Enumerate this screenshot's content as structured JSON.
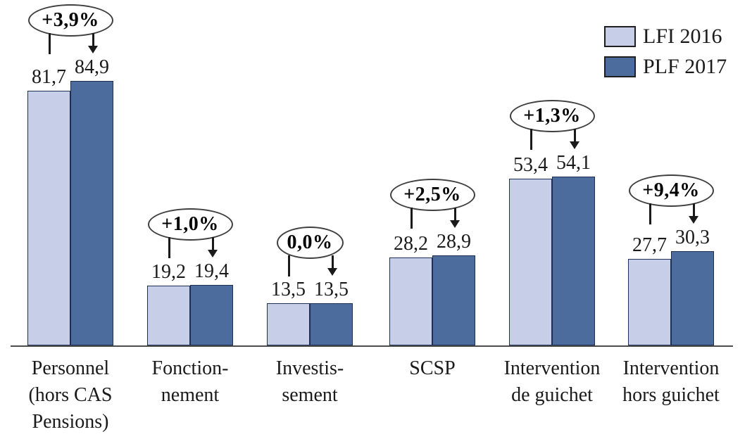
{
  "chart_data": {
    "type": "bar",
    "title": "",
    "xlabel": "",
    "ylabel": "",
    "ylim": [
      0,
      111
    ],
    "grid": false,
    "axis_visible": {
      "x": true,
      "y": false
    },
    "legend_position": "top-right",
    "decimal_separator": ",",
    "categories": [
      "Personnel\n(hors CAS\nPensions)",
      "Fonction-\nnement",
      "Investis-\nsement",
      "SCSP",
      "Intervention\nde guichet",
      "Intervention\nhors guichet"
    ],
    "series": [
      {
        "name": "LFI 2016",
        "values": [
          81.7,
          19.2,
          13.5,
          28.2,
          53.4,
          27.7
        ],
        "display": [
          "81,7",
          "19,2",
          "13,5",
          "28,2",
          "53,4",
          "27,7"
        ]
      },
      {
        "name": "PLF 2017",
        "values": [
          84.9,
          19.4,
          13.5,
          28.9,
          54.1,
          30.3
        ],
        "display": [
          "84,9",
          "19,4",
          "13,5",
          "28,9",
          "54,1",
          "30,3"
        ]
      }
    ],
    "annotations": [
      "+3,9%",
      "+1,0%",
      "0,0%",
      "+2,5%",
      "+1,3%",
      "+9,4%"
    ],
    "colors": {
      "lfi_2016": "#c7cee7",
      "plf_2017": "#4b6c9d",
      "bar_border": "#1d2f52",
      "axis": "#4d4d4d",
      "annotation_border": "#3f3f3f",
      "text": "#1a1a1a"
    }
  }
}
